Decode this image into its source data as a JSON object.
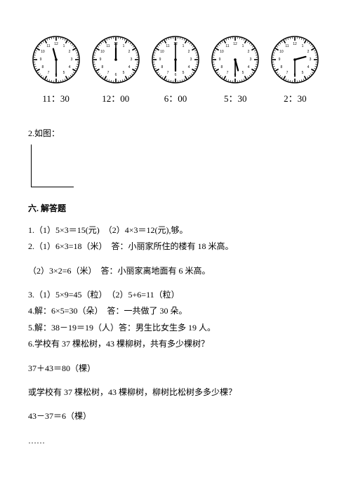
{
  "clocks": [
    {
      "label": "11：30",
      "hour_angle": 345,
      "minute_angle": 180
    },
    {
      "label": "12：00",
      "hour_angle": 0,
      "minute_angle": 0
    },
    {
      "label": "6：00",
      "hour_angle": 180,
      "minute_angle": 0
    },
    {
      "label": "5：30",
      "hour_angle": 165,
      "minute_angle": 180
    },
    {
      "label": "2：30",
      "hour_angle": 75,
      "minute_angle": 180
    }
  ],
  "clock_style": {
    "size": 70,
    "face_color": "#ffffff",
    "stroke_color": "#000000",
    "stroke_width": 1.5,
    "tick_color": "#000000",
    "hand_color": "#000000",
    "hour_hand_len": 16,
    "minute_hand_len": 24,
    "hour_hand_width": 2.2,
    "minute_hand_width": 1.6,
    "major_tick_width": 1.6,
    "minor_tick_width": 0.7,
    "number_fontsize": 5,
    "number_radius": 22
  },
  "item2_label": "2.如图：",
  "section6_title": "六. 解答题",
  "answers": {
    "l1": "1.（1）5×3＝15(元)　（2）4×3＝12(元),够。",
    "l2": "2.（1）6×3=18（米）　答：小丽家所住的楼有 18 米高。",
    "l3": "（2）3×2=6（米）　答：小丽家离地面有 6 米高。",
    "l4": "3.（1）5×9=45（粒）　（2）5+6=11（粒）",
    "l5": "4.解：6×5=30（朵）　答：一共做了 30 朵。",
    "l6": "5.解：38－19＝19（人）答：男生比女生多 19 人。",
    "l7": "6.学校有 37 棵松树，43 棵柳树，共有多少棵树？",
    "l8": "37＋43＝80（棵）",
    "l9": "或学校有 37 棵松树，43 棵柳树，柳树比松树多多少棵？",
    "l10": "43－37＝6（棵）",
    "l11": "……"
  }
}
